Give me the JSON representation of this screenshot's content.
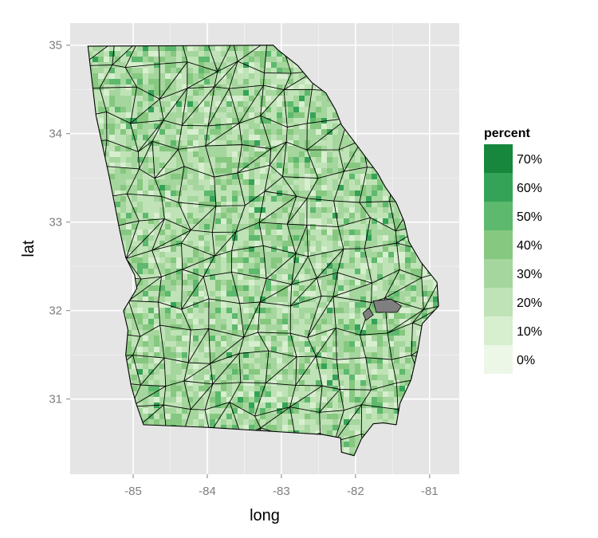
{
  "chart_data": {
    "type": "choropleth",
    "xlabel": "long",
    "ylabel": "lat",
    "xlim": [
      -85.85,
      -80.6
    ],
    "ylim": [
      30.15,
      35.25
    ],
    "x_ticks": [
      {
        "value": -85,
        "label": "-85"
      },
      {
        "value": -84,
        "label": "-84"
      },
      {
        "value": -83,
        "label": "-83"
      },
      {
        "value": -82,
        "label": "-82"
      },
      {
        "value": -81,
        "label": "-81"
      }
    ],
    "y_ticks": [
      {
        "value": 35,
        "label": "35"
      },
      {
        "value": 34,
        "label": "34"
      },
      {
        "value": 33,
        "label": "33"
      },
      {
        "value": 32,
        "label": "32"
      },
      {
        "value": 31,
        "label": "31"
      }
    ],
    "grid": true,
    "legend": {
      "title": "percent",
      "placement": "right",
      "entries": [
        {
          "label": "70%",
          "value": 0.7,
          "color": "#17873d"
        },
        {
          "label": "60%",
          "value": 0.6,
          "color": "#35a357"
        },
        {
          "label": "50%",
          "value": 0.5,
          "color": "#5db96d"
        },
        {
          "label": "40%",
          "value": 0.4,
          "color": "#86c880"
        },
        {
          "label": "30%",
          "value": 0.3,
          "color": "#a5d69d"
        },
        {
          "label": "20%",
          "value": 0.2,
          "color": "#bfe3b6"
        },
        {
          "label": "10%",
          "value": 0.1,
          "color": "#d7eecf"
        },
        {
          "label": "0%",
          "value": 0.0,
          "color": "#ecf7e8"
        }
      ]
    },
    "missing_color": "#7f7f7f",
    "state_outline": [
      [
        -85.61,
        34.99
      ],
      [
        -83.11,
        35.0
      ],
      [
        -83.05,
        34.95
      ],
      [
        -82.78,
        34.77
      ],
      [
        -82.59,
        34.58
      ],
      [
        -82.4,
        34.46
      ],
      [
        -82.27,
        34.27
      ],
      [
        -82.19,
        34.1
      ],
      [
        -82.0,
        33.89
      ],
      [
        -81.85,
        33.72
      ],
      [
        -81.7,
        33.55
      ],
      [
        -81.6,
        33.4
      ],
      [
        -81.45,
        33.22
      ],
      [
        -81.34,
        33.0
      ],
      [
        -81.28,
        32.78
      ],
      [
        -81.12,
        32.55
      ],
      [
        -80.9,
        32.32
      ],
      [
        -80.88,
        32.05
      ],
      [
        -81.1,
        31.85
      ],
      [
        -81.16,
        31.55
      ],
      [
        -81.25,
        31.22
      ],
      [
        -81.4,
        30.95
      ],
      [
        -81.45,
        30.71
      ],
      [
        -81.63,
        30.73
      ],
      [
        -81.76,
        30.72
      ],
      [
        -81.92,
        30.55
      ],
      [
        -82.02,
        30.36
      ],
      [
        -82.19,
        30.4
      ],
      [
        -82.2,
        30.56
      ],
      [
        -82.45,
        30.6
      ],
      [
        -84.0,
        30.68
      ],
      [
        -84.86,
        30.71
      ],
      [
        -84.96,
        30.95
      ],
      [
        -85.03,
        31.16
      ],
      [
        -85.1,
        31.5
      ],
      [
        -85.07,
        31.78
      ],
      [
        -85.13,
        32.0
      ],
      [
        -84.95,
        32.25
      ],
      [
        -84.98,
        32.4
      ],
      [
        -85.1,
        32.6
      ],
      [
        -85.18,
        32.9
      ],
      [
        -85.32,
        33.5
      ],
      [
        -85.5,
        34.2
      ],
      [
        -85.61,
        34.99
      ]
    ],
    "missing_regions": [
      [
        [
          -81.76,
          32.11
        ],
        [
          -81.52,
          32.13
        ],
        [
          -81.38,
          32.05
        ],
        [
          -81.44,
          31.98
        ],
        [
          -81.58,
          31.98
        ],
        [
          -81.72,
          31.98
        ]
      ],
      [
        [
          -81.9,
          31.97
        ],
        [
          -81.82,
          32.03
        ],
        [
          -81.76,
          31.95
        ],
        [
          -81.86,
          31.89
        ]
      ]
    ]
  }
}
